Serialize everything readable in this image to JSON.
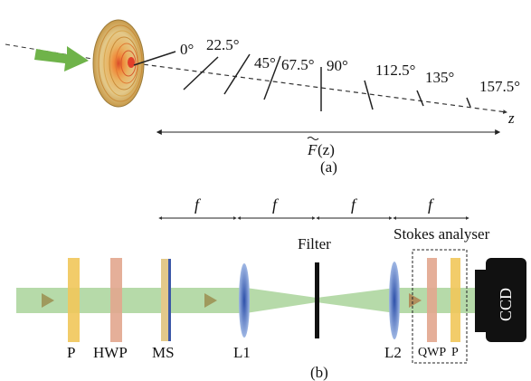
{
  "panel_a": {
    "angles": [
      "0°",
      "22.5°",
      "45°",
      "67.5°",
      "90°",
      "112.5°",
      "135°",
      "157.5°"
    ],
    "axis_label": "z",
    "range_label_F": "F",
    "range_label_arg": "(z)",
    "caption": "(a)"
  },
  "panel_b": {
    "distance_label": "f",
    "filter_label": "Filter",
    "stokes_label": "Stokes analyser",
    "component_labels": {
      "p1": "P",
      "hwp": "HWP",
      "ms": "MS",
      "l1": "L1",
      "l2": "L2",
      "qwp": "QWP",
      "p2": "P",
      "ccd": "CCD"
    },
    "caption": "(b)"
  },
  "colors": {
    "beam": "#a9d39a",
    "arrow": "#6fb34a",
    "polarizer": "#f1c65a",
    "hwp": "#e2a68e",
    "lens": "#4a74c4",
    "ccd": "#111111"
  }
}
